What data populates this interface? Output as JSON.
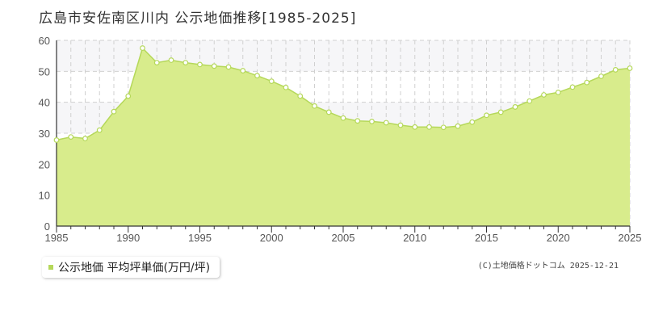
{
  "colors": {
    "fill": "#d8ec8c",
    "line": "#b5d85a",
    "marker_stroke": "#b5d85a",
    "marker_fill": "#ffffff",
    "grid": "#d0d0d0",
    "band": "#f6f6f8",
    "legend_marker": "#b5d85a"
  },
  "legend": {
    "label": "公示地価 平均坪単価(万円/坪)"
  },
  "credit": "(C)土地価格ドットコム 2025-12-21",
  "chart_data": {
    "type": "area",
    "title": "広島市安佐南区川内 公示地価推移[1985-2025]",
    "xlabel": "",
    "ylabel": "",
    "xlim": [
      1985,
      2025
    ],
    "ylim": [
      0,
      60
    ],
    "x_ticks": [
      1985,
      1990,
      1995,
      2000,
      2005,
      2010,
      2015,
      2020,
      2025
    ],
    "y_ticks": [
      0,
      10,
      20,
      30,
      40,
      50,
      60
    ],
    "grid": true,
    "legend_position": "bottom-left",
    "series": [
      {
        "name": "公示地価 平均坪単価(万円/坪)",
        "x": [
          1985,
          1986,
          1987,
          1988,
          1989,
          1990,
          1991,
          1992,
          1993,
          1994,
          1995,
          1996,
          1997,
          1998,
          1999,
          2000,
          2001,
          2002,
          2003,
          2004,
          2005,
          2006,
          2007,
          2008,
          2009,
          2010,
          2011,
          2012,
          2013,
          2014,
          2015,
          2016,
          2017,
          2018,
          2019,
          2020,
          2021,
          2022,
          2023,
          2024,
          2025
        ],
        "values": [
          27.8,
          28.8,
          28.3,
          31.0,
          37.0,
          42.0,
          57.5,
          52.8,
          53.6,
          52.8,
          52.2,
          51.7,
          51.4,
          50.2,
          48.6,
          46.8,
          44.8,
          42.0,
          38.8,
          36.8,
          34.9,
          34.0,
          33.8,
          33.4,
          32.6,
          32.0,
          32.0,
          31.9,
          32.3,
          33.6,
          35.8,
          36.8,
          38.5,
          40.4,
          42.4,
          43.2,
          44.9,
          46.4,
          48.4,
          50.5,
          51.0
        ]
      }
    ]
  }
}
